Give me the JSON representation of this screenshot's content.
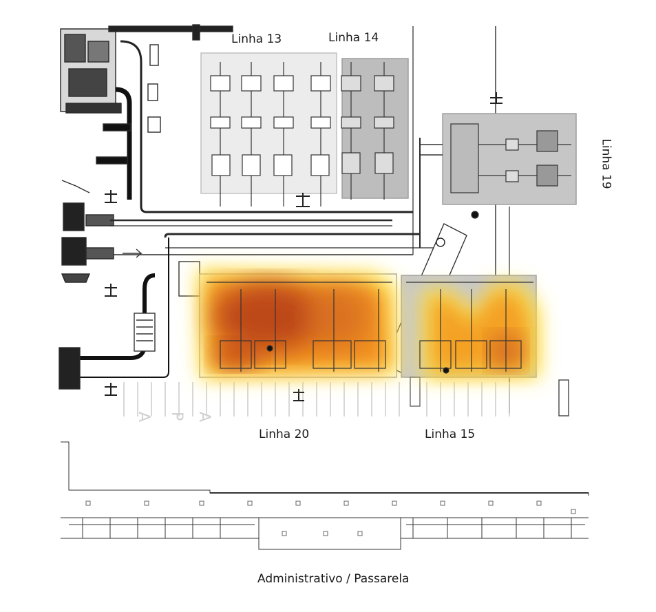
{
  "labels": {
    "linha13": "Linha 13",
    "linha14": "Linha 14",
    "linha19": "Linha 19",
    "linha20": "Linha 20",
    "linha15": "Linha 15",
    "admin": "Administrativo / Passarela"
  },
  "floor_letters": [
    "A",
    "P",
    "A"
  ],
  "colors": {
    "line": "#2a2a2a",
    "zone_light": "#e9e9e9",
    "zone_dark": "#bdbdbd",
    "heat_core": "#b8401a",
    "heat_mid": "#f08a1c",
    "heat_edge": "#ffe84a"
  }
}
